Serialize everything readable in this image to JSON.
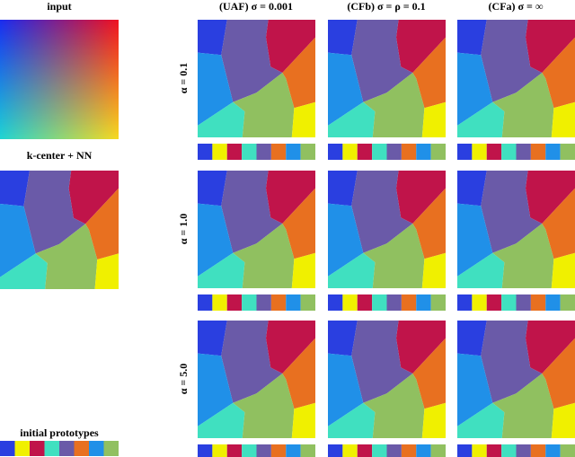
{
  "left": {
    "input_label": "input",
    "baseline_label": "k-center + NN",
    "prototypes_label": "initial prototypes"
  },
  "columns": [
    "(UAF) σ = 0.001",
    "(CFb) σ = ρ = 0.1",
    "(CFa) σ = ∞"
  ],
  "rows": [
    "α = 0.1",
    "α = 1.0",
    "α = 5.0"
  ]
}
